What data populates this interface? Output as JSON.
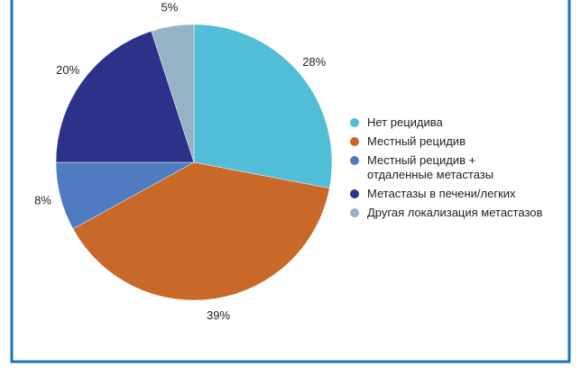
{
  "chart_data": {
    "type": "pie",
    "categories": [
      "Нет рецидива",
      "Местный рецидив",
      "Местный рецидив +\nотдаленные метастазы",
      "Метастазы в печени/легких",
      "Другая локализация метастазов"
    ],
    "values": [
      28,
      39,
      8,
      20,
      5
    ],
    "value_labels": [
      "28%",
      "39%",
      "8%",
      "20%",
      "5%"
    ],
    "colors": [
      "#52bdd6",
      "#c8692a",
      "#4f7bc1",
      "#2c3189",
      "#94b3c6"
    ],
    "legend": "right"
  }
}
